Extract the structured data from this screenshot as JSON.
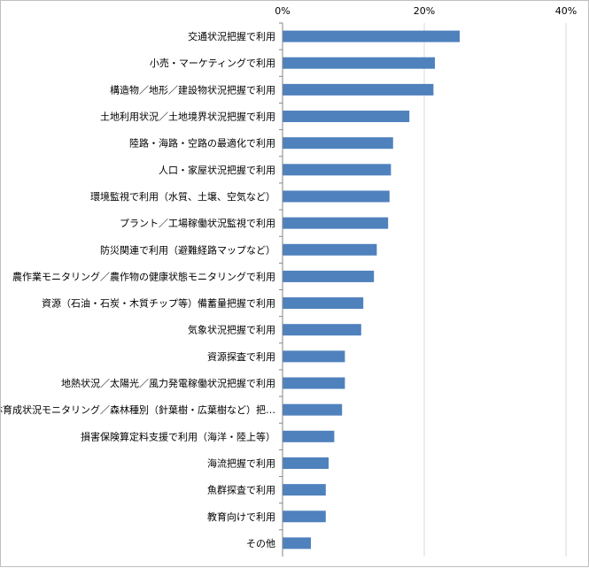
{
  "chart_data": {
    "type": "bar",
    "orientation": "horizontal",
    "categories": [
      "交通状況把握で利用",
      "小売・マーケティングで利用",
      "構造物／地形／建設物状況把握で利用",
      "土地利用状況／土地境界状況把握で利用",
      "陸路・海路・空路の最適化で利用",
      "人口・家屋状況把握で利用",
      "環境監視で利用（水質、土壌、空気など）",
      "プラント／工場稼働状況監視で利用",
      "防災関連で利用（避難経路マップなど）",
      "農作業モニタリング／農作物の健康状態モニタリングで利用",
      "資源（石油・石炭・木質チップ等）備蓄量把握で利用",
      "気象状況把握で利用",
      "資源探査で利用",
      "地熱状況／太陽光／風力発電稼働状況把握で利用",
      "森林育成状況モニタリング／森林種別（針葉樹・広葉樹など）把…",
      "損害保険算定料支援で利用（海洋・陸上等）",
      "海流把握で利用",
      "魚群探査で利用",
      "教育向けで利用",
      "その他"
    ],
    "values": [
      25.0,
      21.5,
      21.3,
      17.9,
      15.6,
      15.3,
      15.1,
      14.9,
      13.3,
      12.9,
      11.4,
      11.1,
      8.8,
      8.8,
      8.4,
      7.3,
      6.5,
      6.1,
      6.1,
      4.0
    ],
    "xlim": [
      0,
      40
    ],
    "ticks": [
      0,
      20,
      40
    ],
    "tick_labels": [
      "0%",
      "20%",
      "40%"
    ],
    "bar_color": "#4f81bd",
    "grid": true
  }
}
